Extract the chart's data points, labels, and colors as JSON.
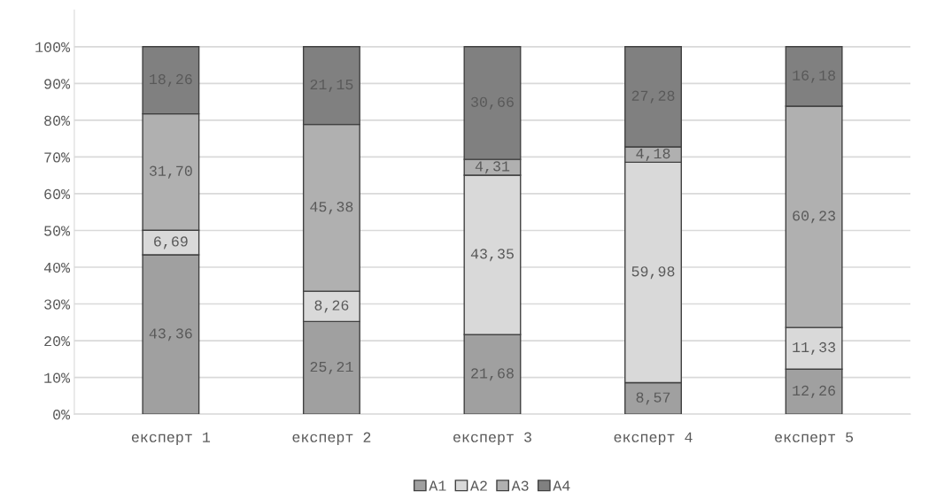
{
  "chart_data": {
    "type": "bar",
    "stacked": true,
    "categories": [
      "експерт 1",
      "експерт 2",
      "експерт 3",
      "експерт 4",
      "експерт 5"
    ],
    "series": [
      {
        "name": "A1",
        "color": "#a0a0a0",
        "values": [
          43.36,
          25.21,
          21.68,
          8.57,
          12.26
        ],
        "value_labels": [
          "43,36",
          "25,21",
          "21,68",
          "8,57",
          "12,26"
        ]
      },
      {
        "name": "A2",
        "color": "#d9d9d9",
        "values": [
          6.69,
          8.26,
          43.35,
          59.98,
          11.33
        ],
        "value_labels": [
          "6,69",
          "8,26",
          "43,35",
          "59,98",
          "11,33"
        ]
      },
      {
        "name": "A3",
        "color": "#b0b0b0",
        "values": [
          31.7,
          45.38,
          4.31,
          4.18,
          60.23
        ],
        "value_labels": [
          "31,70",
          "45,38",
          "4,31",
          "4,18",
          "60,23"
        ]
      },
      {
        "name": "A4",
        "color": "#808080",
        "values": [
          18.26,
          21.15,
          30.66,
          27.28,
          16.18
        ],
        "value_labels": [
          "18,26",
          "21,15",
          "30,66",
          "27,28",
          "16,18"
        ]
      }
    ],
    "ylim": [
      0,
      110
    ],
    "yticks": [
      {
        "value": 0,
        "label": "0%"
      },
      {
        "value": 10,
        "label": "10%"
      },
      {
        "value": 20,
        "label": "20%"
      },
      {
        "value": 30,
        "label": "30%"
      },
      {
        "value": 40,
        "label": "40%"
      },
      {
        "value": 50,
        "label": "50%"
      },
      {
        "value": 60,
        "label": "60%"
      },
      {
        "value": 70,
        "label": "70%"
      },
      {
        "value": 80,
        "label": "80%"
      },
      {
        "value": 90,
        "label": "90%"
      },
      {
        "value": 100,
        "label": "100%"
      }
    ],
    "grid": "y",
    "legend": "bottom"
  }
}
